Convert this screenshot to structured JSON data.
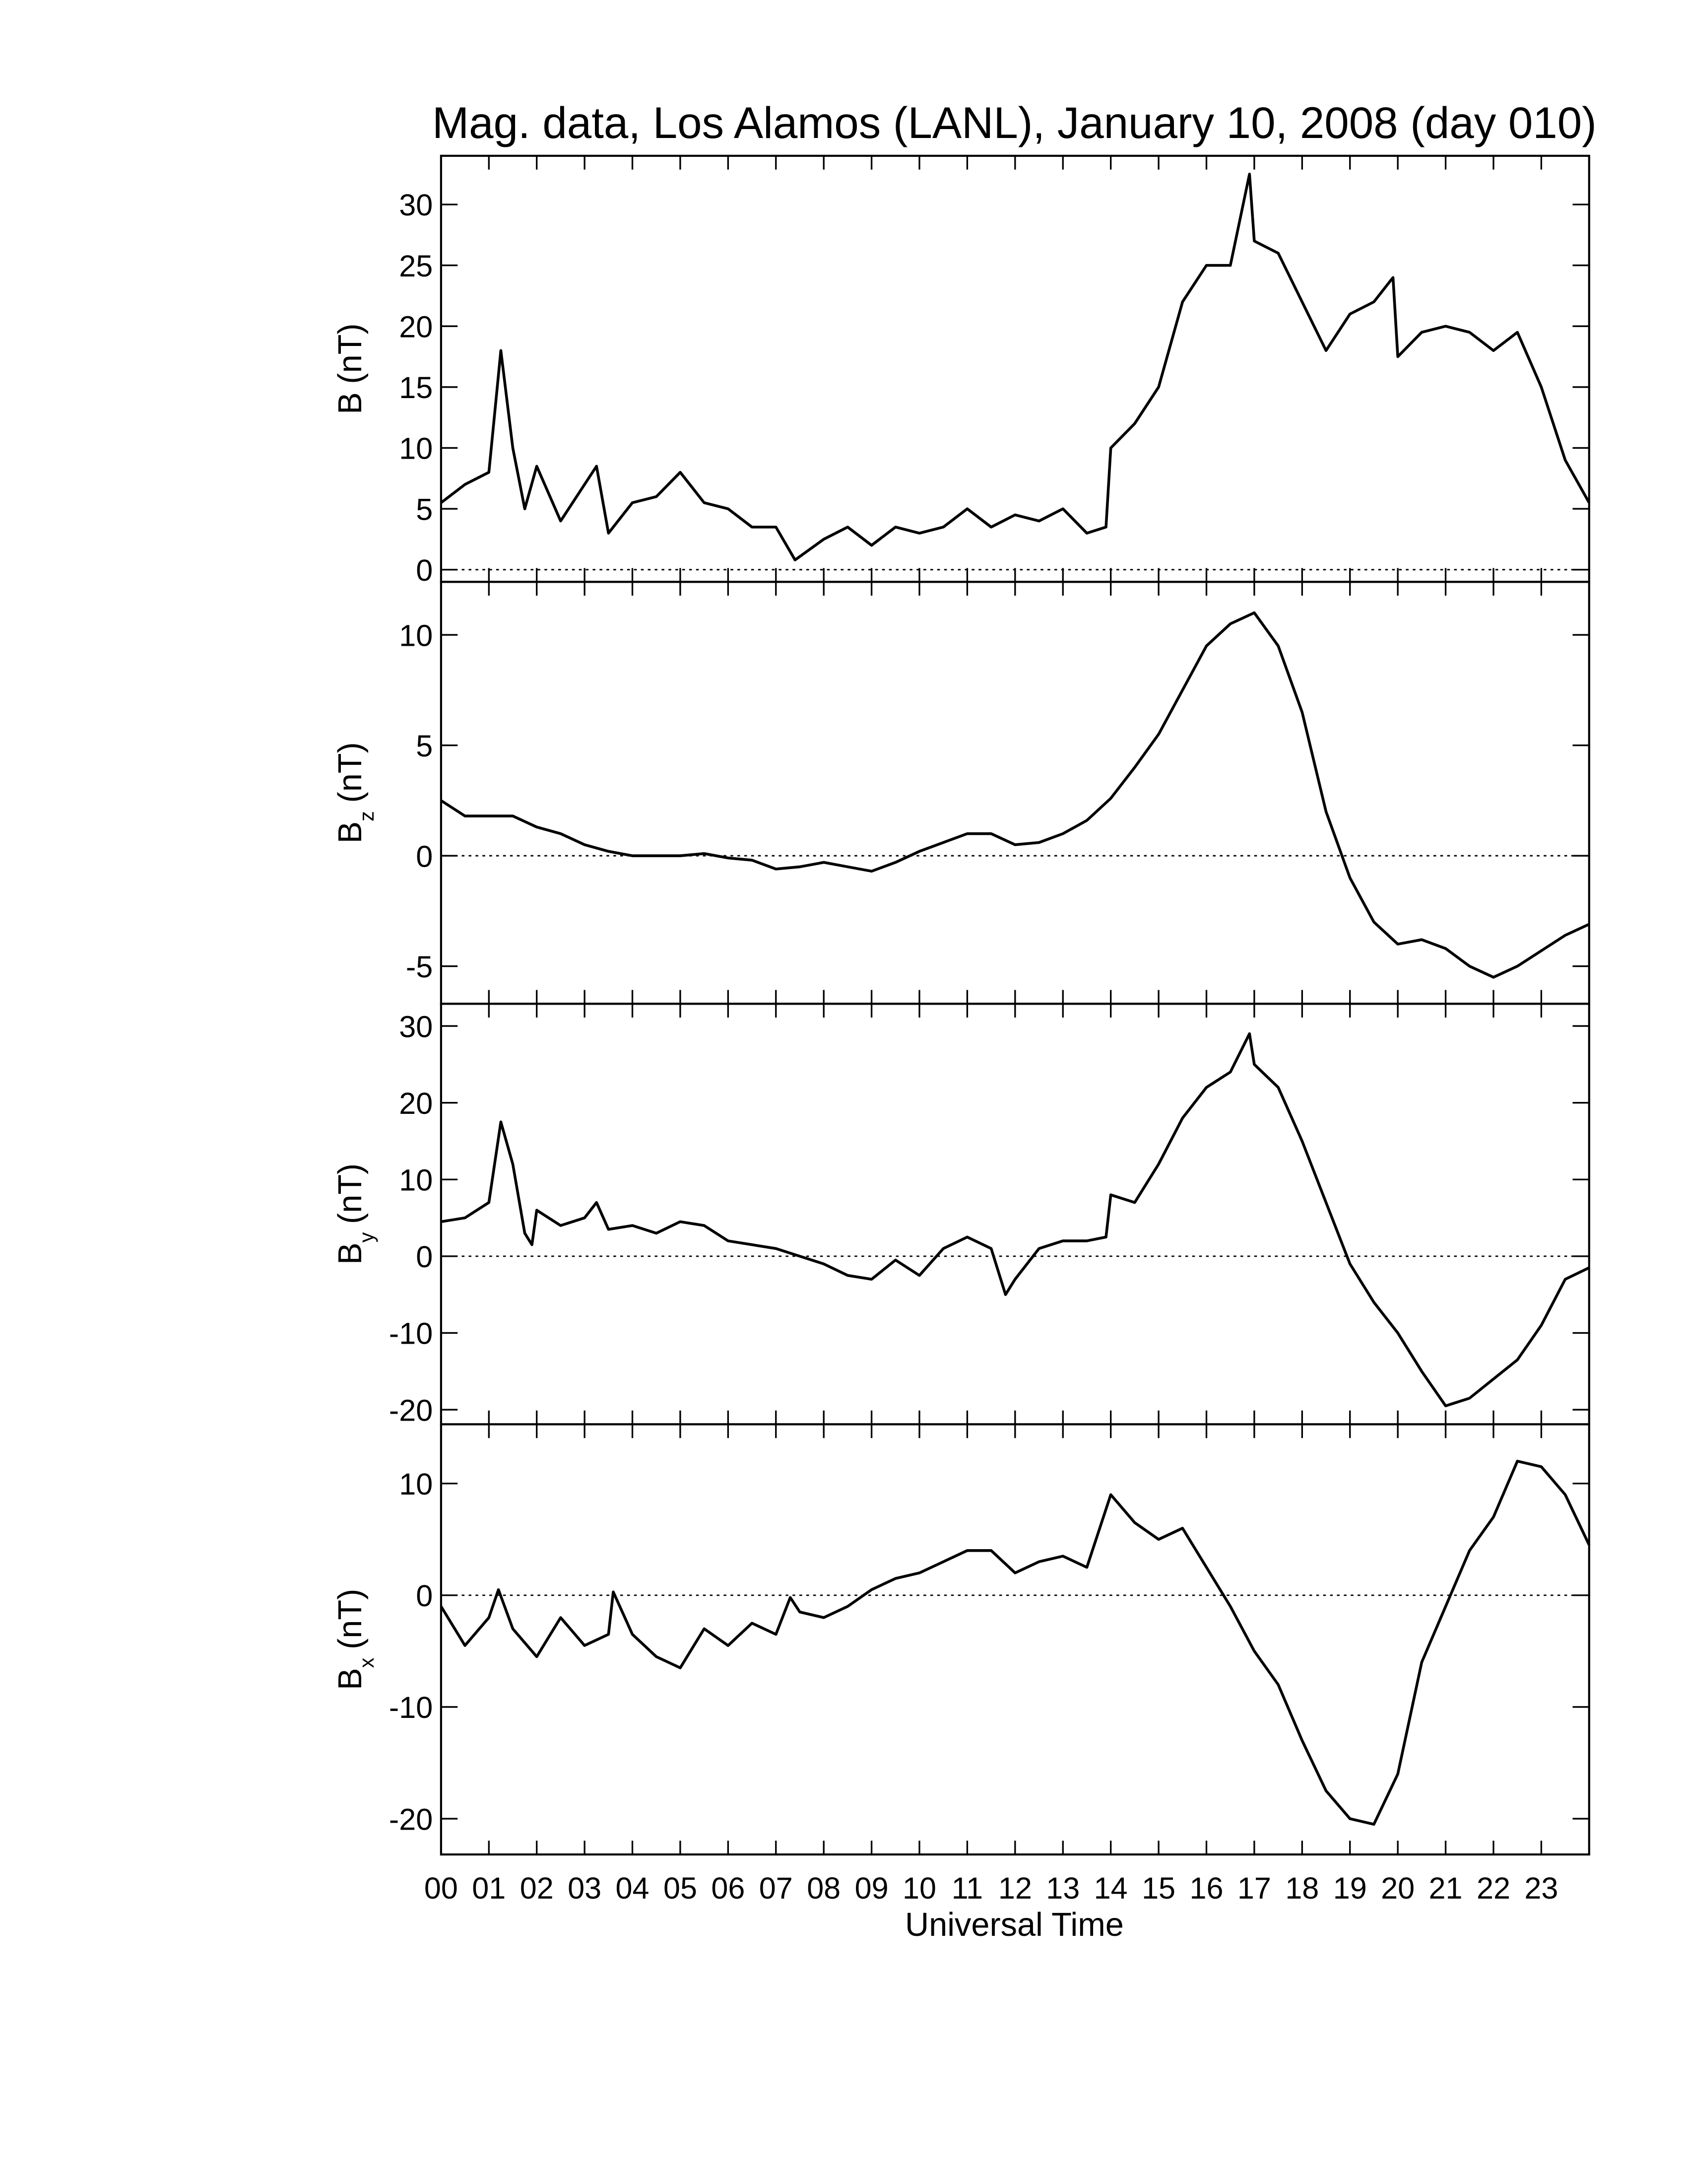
{
  "chart_data": [
    {
      "type": "line",
      "title": "Mag. data, Los Alamos (LANL), January 10, 2008 (day 010)",
      "ylabel": {
        "main": "B",
        "unit": "(nT)"
      },
      "color": "#000000",
      "hline": 0,
      "xlim": [
        0,
        24
      ],
      "xticks": [
        0,
        1,
        2,
        3,
        4,
        5,
        6,
        7,
        8,
        9,
        10,
        11,
        12,
        13,
        14,
        15,
        16,
        17,
        18,
        19,
        20,
        21,
        22,
        23
      ],
      "ylim": [
        -1,
        34
      ],
      "yticks": [
        0,
        5,
        10,
        15,
        20,
        25,
        30
      ],
      "x": [
        0,
        0.5,
        1,
        1.25,
        1.5,
        1.75,
        2,
        2.5,
        3,
        3.25,
        3.5,
        4,
        4.5,
        5,
        5.5,
        6,
        6.5,
        7,
        7.4,
        8,
        8.5,
        9,
        9.5,
        10,
        10.5,
        11,
        11.5,
        12,
        12.5,
        13,
        13.5,
        13.9,
        14,
        14.5,
        15,
        15.5,
        16,
        16.5,
        16.9,
        17,
        17.5,
        18,
        18.5,
        19,
        19.5,
        19.9,
        20,
        20.5,
        21,
        21.5,
        22,
        22.5,
        23,
        23.5,
        24
      ],
      "values": [
        5.5,
        7,
        8,
        18,
        10,
        5,
        8.5,
        4,
        7,
        8.5,
        3,
        5.5,
        6,
        8,
        5.5,
        5,
        3.5,
        3.5,
        0.8,
        2.5,
        3.5,
        2,
        3.5,
        3,
        3.5,
        5,
        3.5,
        4.5,
        4,
        5,
        3,
        3.5,
        10,
        12,
        15,
        22,
        25,
        25,
        32.5,
        27,
        26,
        22,
        18,
        21,
        22,
        24,
        17.5,
        19.5,
        20,
        19.5,
        18,
        19.5,
        15,
        9,
        5.5
      ]
    },
    {
      "type": "line",
      "ylabel": {
        "main": "B",
        "sub": "z",
        "unit": "(nT)"
      },
      "color": "#000000",
      "hline": 0,
      "xlim": [
        0,
        24
      ],
      "xticks": [
        0,
        1,
        2,
        3,
        4,
        5,
        6,
        7,
        8,
        9,
        10,
        11,
        12,
        13,
        14,
        15,
        16,
        17,
        18,
        19,
        20,
        21,
        22,
        23
      ],
      "ylim": [
        -6.7,
        12.4
      ],
      "yticks": [
        -5,
        0,
        5,
        10
      ],
      "x": [
        0,
        0.5,
        1,
        1.5,
        2,
        2.5,
        3,
        3.5,
        4,
        4.5,
        5,
        5.5,
        6,
        6.5,
        7,
        7.5,
        8,
        8.5,
        9,
        9.5,
        10,
        10.5,
        11,
        11.5,
        12,
        12.5,
        13,
        13.5,
        14,
        14.5,
        15,
        15.5,
        16,
        16.5,
        17,
        17.5,
        18,
        18.5,
        19,
        19.5,
        20,
        20.5,
        21,
        21.5,
        22,
        22.5,
        23,
        23.5,
        24
      ],
      "values": [
        2.5,
        1.8,
        1.8,
        1.8,
        1.3,
        1,
        0.5,
        0.2,
        0,
        0,
        0,
        0.1,
        -0.1,
        -0.2,
        -0.6,
        -0.5,
        -0.3,
        -0.5,
        -0.7,
        -0.3,
        0.2,
        0.6,
        1,
        1,
        0.5,
        0.6,
        1,
        1.6,
        2.6,
        4,
        5.5,
        7.5,
        9.5,
        10.5,
        11,
        9.5,
        6.5,
        2,
        -1,
        -3,
        -4,
        -3.8,
        -4.2,
        -5,
        -5.5,
        -5,
        -4.3,
        -3.6,
        -3.1
      ]
    },
    {
      "type": "line",
      "ylabel": {
        "main": "B",
        "sub": "y",
        "unit": "(nT)"
      },
      "color": "#000000",
      "hline": 0,
      "xlim": [
        0,
        24
      ],
      "xticks": [
        0,
        1,
        2,
        3,
        4,
        5,
        6,
        7,
        8,
        9,
        10,
        11,
        12,
        13,
        14,
        15,
        16,
        17,
        18,
        19,
        20,
        21,
        22,
        23
      ],
      "ylim": [
        -21.9,
        32.9
      ],
      "yticks": [
        -20,
        -10,
        0,
        10,
        20,
        30
      ],
      "x": [
        0,
        0.5,
        1,
        1.25,
        1.5,
        1.75,
        1.9,
        2,
        2.5,
        3,
        3.25,
        3.5,
        4,
        4.5,
        5,
        5.5,
        6,
        6.5,
        7,
        7.5,
        8,
        8.5,
        9,
        9.5,
        10,
        10.5,
        11,
        11.5,
        11.8,
        12,
        12.5,
        13,
        13.5,
        13.9,
        14,
        14.5,
        15,
        15.5,
        16,
        16.5,
        16.9,
        17,
        17.5,
        18,
        18.5,
        19,
        19.5,
        20,
        20.5,
        21,
        21.5,
        22,
        22.5,
        23,
        23.5,
        24
      ],
      "values": [
        4.5,
        5,
        7,
        17.5,
        12,
        3,
        1.5,
        6,
        4,
        5,
        7,
        3.5,
        4,
        3,
        4.5,
        4,
        2,
        1.5,
        1,
        0,
        -1,
        -2.5,
        -3,
        -0.5,
        -2.5,
        1,
        2.5,
        1,
        -5,
        -3,
        1,
        2,
        2,
        2.5,
        8,
        7,
        12,
        18,
        22,
        24,
        29,
        25,
        22,
        15,
        7,
        -1,
        -6,
        -10,
        -15,
        -19.5,
        -18.5,
        -16,
        -13.5,
        -9,
        -3,
        -1.5
      ]
    },
    {
      "type": "line",
      "ylabel": {
        "main": "B",
        "sub": "x",
        "unit": "(nT)"
      },
      "xlabel": "Universal Time",
      "color": "#000000",
      "hline": 0,
      "xlim": [
        0,
        24
      ],
      "xticks": [
        {
          "value": 0,
          "label": "00"
        },
        {
          "value": 1,
          "label": "01"
        },
        {
          "value": 2,
          "label": "02"
        },
        {
          "value": 3,
          "label": "03"
        },
        {
          "value": 4,
          "label": "04"
        },
        {
          "value": 5,
          "label": "05"
        },
        {
          "value": 6,
          "label": "06"
        },
        {
          "value": 7,
          "label": "07"
        },
        {
          "value": 8,
          "label": "08"
        },
        {
          "value": 9,
          "label": "09"
        },
        {
          "value": 10,
          "label": "10"
        },
        {
          "value": 11,
          "label": "11"
        },
        {
          "value": 12,
          "label": "12"
        },
        {
          "value": 13,
          "label": "13"
        },
        {
          "value": 14,
          "label": "14"
        },
        {
          "value": 15,
          "label": "15"
        },
        {
          "value": 16,
          "label": "16"
        },
        {
          "value": 17,
          "label": "17"
        },
        {
          "value": 18,
          "label": "18"
        },
        {
          "value": 19,
          "label": "19"
        },
        {
          "value": 20,
          "label": "20"
        },
        {
          "value": 21,
          "label": "21"
        },
        {
          "value": 22,
          "label": "22"
        },
        {
          "value": 23,
          "label": "23"
        }
      ],
      "ylim": [
        -23.2,
        15.3
      ],
      "yticks": [
        -20,
        -10,
        0,
        10
      ],
      "x": [
        0,
        0.5,
        1,
        1.2,
        1.5,
        2,
        2.5,
        3,
        3.5,
        3.6,
        4,
        4.5,
        5,
        5.5,
        6,
        6.5,
        7,
        7.3,
        7.5,
        8,
        8.5,
        9,
        9.5,
        10,
        10.5,
        11,
        11.5,
        12,
        12.5,
        13,
        13.5,
        14,
        14.5,
        15,
        15.5,
        16,
        16.5,
        17,
        17.5,
        18,
        18.5,
        19,
        19.5,
        20,
        20.5,
        21,
        21.5,
        22,
        22.5,
        23,
        23.5,
        24
      ],
      "values": [
        -1,
        -4.5,
        -2,
        0.5,
        -3,
        -5.5,
        -2,
        -4.5,
        -3.5,
        0.3,
        -3.5,
        -5.5,
        -6.5,
        -3,
        -4.5,
        -2.5,
        -3.5,
        -0.2,
        -1.5,
        -2,
        -1,
        0.5,
        1.5,
        2,
        3,
        4,
        4,
        2,
        3,
        3.5,
        2.5,
        9,
        6.5,
        5,
        6,
        2.5,
        -1,
        -5,
        -8,
        -13,
        -17.5,
        -20,
        -20.5,
        -16,
        -6,
        -1,
        4,
        7,
        12,
        11.5,
        9,
        4.5
      ]
    }
  ]
}
